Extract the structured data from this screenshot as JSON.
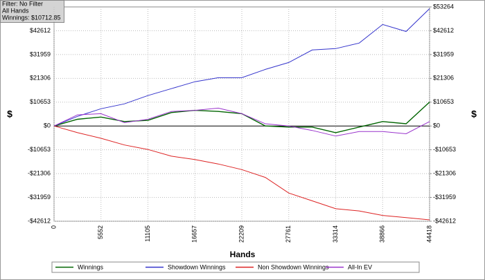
{
  "chart_data": {
    "type": "line",
    "info": [
      "Filter: No Filter",
      "All Hands",
      "Winnings: $10712.85"
    ],
    "xlabel": "Hands",
    "ylabel": "$",
    "y2label": "$",
    "x": [
      0,
      2776,
      5552,
      8328,
      11105,
      13881,
      16657,
      19433,
      22209,
      24985,
      27761,
      30537,
      33314,
      36090,
      38866,
      41642,
      44418
    ],
    "series": [
      {
        "name": "Winnings",
        "color": "#006400",
        "values": [
          0,
          3000,
          4000,
          2000,
          2500,
          6000,
          7000,
          6500,
          5500,
          0,
          -500,
          -500,
          -3000,
          -500,
          2000,
          1000,
          10700
        ]
      },
      {
        "name": "Showdown Winnings",
        "color": "#3333cc",
        "values": [
          0,
          4300,
          7700,
          9900,
          13600,
          16700,
          19800,
          21600,
          21600,
          25300,
          28400,
          34000,
          34600,
          37100,
          45400,
          42300,
          52500
        ]
      },
      {
        "name": "Non Showdown Winnings",
        "color": "#dd2222",
        "values": [
          0,
          -3000,
          -5500,
          -8500,
          -10500,
          -13500,
          -15000,
          -17000,
          -19500,
          -23000,
          -30000,
          -33500,
          -37000,
          -38000,
          -40000,
          -41000,
          -42000
        ]
      },
      {
        "name": "All-In EV",
        "color": "#9933cc",
        "values": [
          0,
          5000,
          5500,
          1500,
          3000,
          6500,
          7000,
          8000,
          5500,
          1000,
          0,
          -2000,
          -4500,
          -2500,
          -2500,
          -3500,
          2000
        ]
      }
    ],
    "xlim": [
      0,
      44418
    ],
    "xticks": [
      0,
      5552,
      11105,
      16657,
      22209,
      27761,
      33314,
      38866,
      44418
    ],
    "ylim": [
      -42612,
      53264
    ],
    "yticks": [
      {
        "value": -42612,
        "label": "-$42612"
      },
      {
        "value": -31959,
        "label": "-$31959"
      },
      {
        "value": -21306,
        "label": "-$21306"
      },
      {
        "value": -10653,
        "label": "-$10653"
      },
      {
        "value": 0,
        "label": "$0"
      },
      {
        "value": 10653,
        "label": "$10653"
      },
      {
        "value": 21306,
        "label": "$21306"
      },
      {
        "value": 31959,
        "label": "$31959"
      },
      {
        "value": 42612,
        "label": "$42612"
      }
    ],
    "y2lim": [
      -42612,
      53264
    ],
    "y2ticks": [
      {
        "value": -42612,
        "label": "-$42612"
      },
      {
        "value": -31959,
        "label": "-$31959"
      },
      {
        "value": -21306,
        "label": "-$21306"
      },
      {
        "value": -10653,
        "label": "-$10653"
      },
      {
        "value": 0,
        "label": "$0"
      },
      {
        "value": 10653,
        "label": "$10653"
      },
      {
        "value": 21306,
        "label": "$21306"
      },
      {
        "value": 31959,
        "label": "$31959"
      },
      {
        "value": 42612,
        "label": "$42612"
      },
      {
        "value": 53264,
        "label": "$53264"
      }
    ],
    "grid": true
  }
}
